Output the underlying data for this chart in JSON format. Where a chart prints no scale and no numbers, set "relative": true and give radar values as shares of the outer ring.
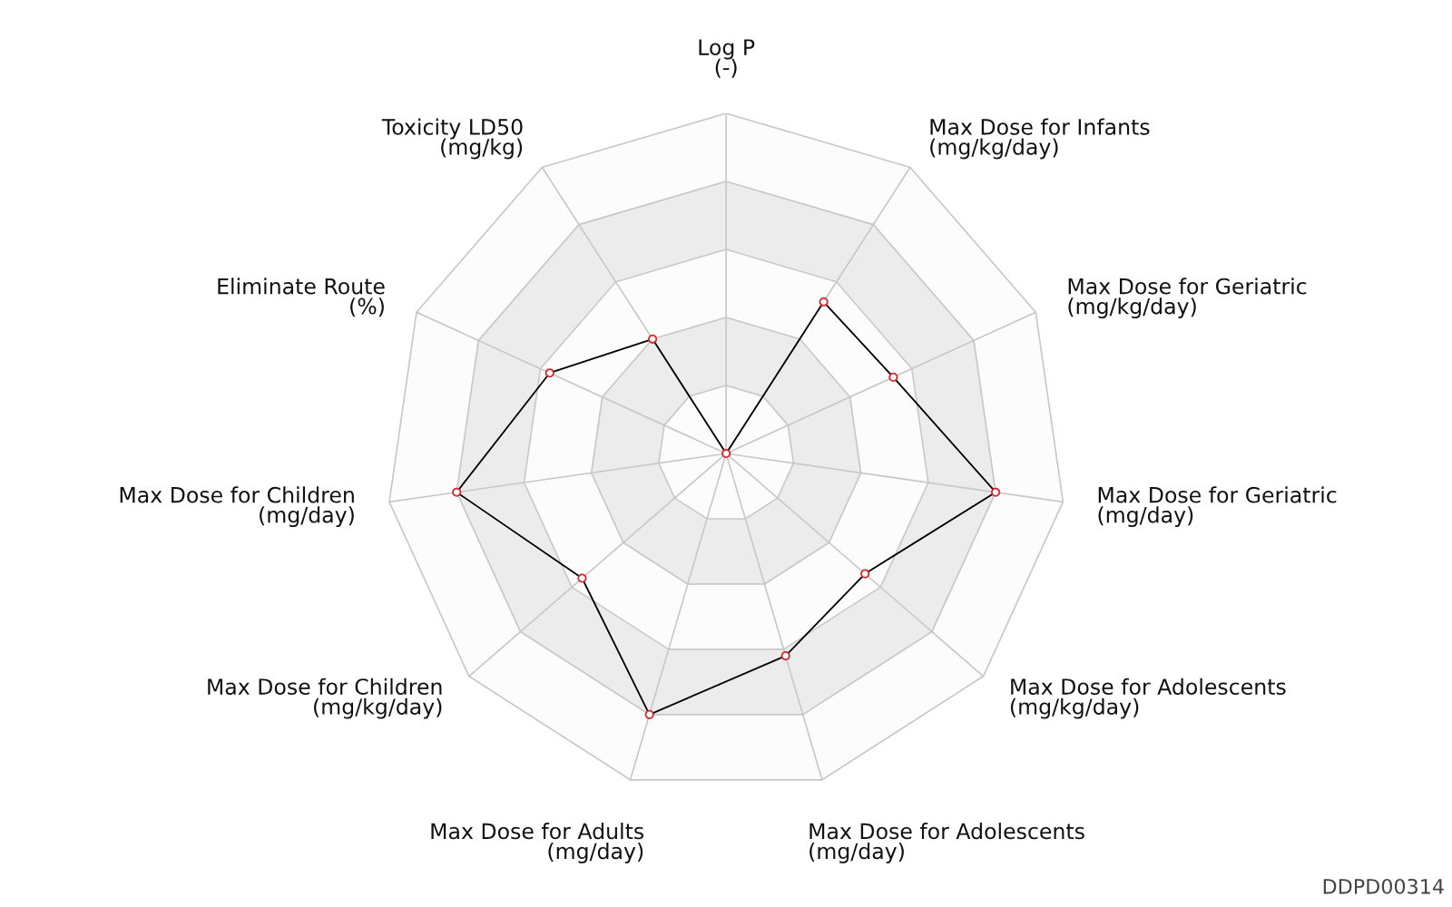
{
  "chart_data": {
    "type": "radar",
    "relative": true,
    "categories": [
      "Log P\n(-)",
      "Max Dose for Infants\n(mg/kg/day)",
      "Max Dose for Geriatric\n(mg/kg/day)",
      "Max Dose for Geriatric\n(mg/day)",
      "Max Dose for Adolescents\n(mg/kg/day)",
      "Max Dose for Adolescents\n(mg/day)",
      "Max Dose for Adults\n(mg/day)",
      "Max Dose for Children\n(mg/kg/day)",
      "Max Dose for Children\n(mg/day)",
      "Eliminate Route\n(%)",
      "Toxicity LD50\n(mg/kg)"
    ],
    "series": [
      {
        "color": "#000000",
        "values": [
          0,
          0.53,
          0.54,
          0.8,
          0.54,
          0.62,
          0.8,
          0.56,
          0.8,
          0.57,
          0.4
        ]
      }
    ],
    "marker": "circle",
    "grid": true,
    "annotations": [
      "DDPD00314"
    ]
  }
}
